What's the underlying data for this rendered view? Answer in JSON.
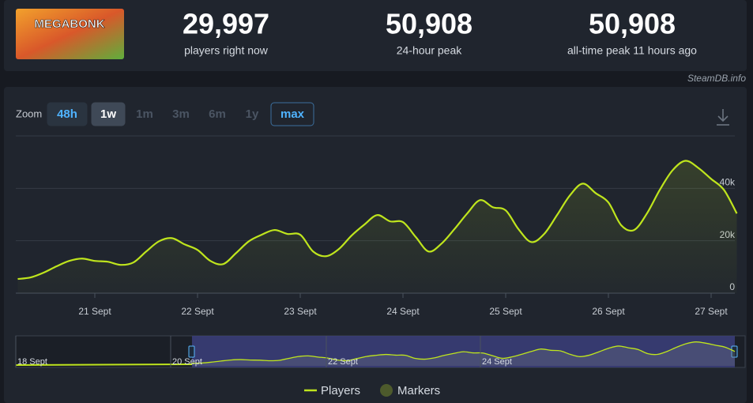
{
  "header": {
    "logo_text": "MEGABONK",
    "stats": [
      {
        "value": "29,997",
        "label": "players right now"
      },
      {
        "value": "50,908",
        "label": "24-hour peak"
      },
      {
        "value": "50,908",
        "label": "all-time peak 11 hours ago"
      }
    ],
    "credit": "SteamDB.info"
  },
  "zoom": {
    "label": "Zoom",
    "buttons": [
      "48h",
      "1w",
      "1m",
      "3m",
      "6m",
      "1y",
      "max"
    ]
  },
  "chart_data": {
    "type": "line",
    "categories": [
      null,
      null,
      null,
      null,
      null,
      null,
      "21 Sept",
      null,
      null,
      null,
      null,
      null,
      null,
      null,
      "22 Sept",
      null,
      null,
      null,
      null,
      null,
      null,
      null,
      "23 Sept",
      null,
      null,
      null,
      null,
      null,
      null,
      null,
      "24 Sept",
      null,
      null,
      null,
      null,
      null,
      null,
      null,
      "25 Sept",
      null,
      null,
      null,
      null,
      null,
      null,
      null,
      "26 Sept",
      null,
      null,
      null,
      null,
      null,
      null,
      null,
      "27 Sept",
      null,
      null
    ],
    "series": [
      {
        "name": "Players",
        "color": "#bfe51d",
        "values": [
          5400,
          6000,
          7800,
          10200,
          12300,
          13200,
          12300,
          12000,
          10800,
          11700,
          15900,
          19800,
          21000,
          18600,
          16500,
          12300,
          11100,
          15300,
          19800,
          22300,
          24100,
          22600,
          22300,
          15900,
          14100,
          16800,
          22000,
          26200,
          29800,
          27400,
          27100,
          21400,
          15900,
          18900,
          24400,
          30400,
          35500,
          32800,
          31600,
          24400,
          19500,
          22600,
          29800,
          37300,
          41800,
          38200,
          34600,
          25900,
          24100,
          30400,
          39400,
          46900,
          50500,
          47800,
          43600,
          39400,
          30400
        ]
      }
    ],
    "markers_label": "Markers",
    "ylim": [
      0,
      60000
    ],
    "yticks": [
      0,
      {
        "value": 20000,
        "label": "20k"
      },
      {
        "value": 40000,
        "label": "40k"
      }
    ],
    "grid": true,
    "navigator_labels": [
      "18 Sept",
      "20 Sept",
      "22 Sept",
      "24 Sept"
    ]
  }
}
